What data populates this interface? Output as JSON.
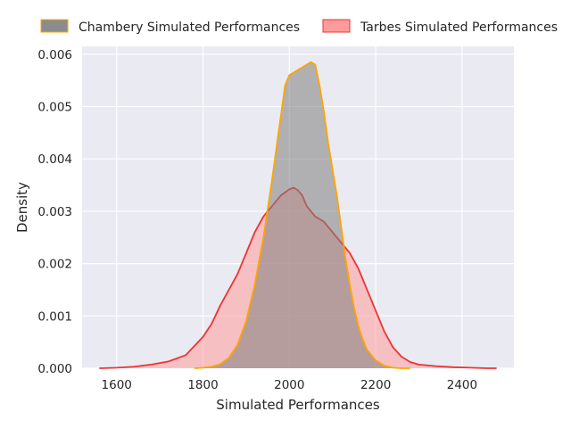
{
  "chart_data": {
    "type": "area",
    "title": "",
    "xlabel": "Simulated Performances",
    "ylabel": "Density",
    "xlim": [
      1520,
      2520
    ],
    "ylim": [
      0,
      0.00615
    ],
    "xticks": [
      1600,
      1800,
      2000,
      2200,
      2400
    ],
    "xtick_labels": [
      "1600",
      "1800",
      "2000",
      "2200",
      "2400"
    ],
    "yticks": [
      0,
      0.001,
      0.002,
      0.003,
      0.004,
      0.005,
      0.006
    ],
    "ytick_labels": [
      "0.000",
      "0.001",
      "0.002",
      "0.003",
      "0.004",
      "0.005",
      "0.006"
    ],
    "grid": true,
    "legend_position": "top",
    "series": [
      {
        "name": "Chambery Simulated Performances",
        "fill_color": "#7f7f7f",
        "line_color": "#ffa500",
        "x": [
          1780,
          1800,
          1820,
          1840,
          1860,
          1880,
          1900,
          1920,
          1940,
          1960,
          1970,
          1980,
          1990,
          2000,
          2010,
          2020,
          2030,
          2040,
          2050,
          2060,
          2070,
          2080,
          2090,
          2100,
          2110,
          2120,
          2130,
          2140,
          2150,
          2160,
          2170,
          2180,
          2200,
          2220,
          2240,
          2260,
          2280
        ],
        "y": [
          0.0,
          1e-05,
          3e-05,
          8e-05,
          0.0002,
          0.00045,
          0.0009,
          0.0016,
          0.0025,
          0.0036,
          0.0042,
          0.0048,
          0.0054,
          0.0056,
          0.00565,
          0.0057,
          0.00575,
          0.0058,
          0.00585,
          0.0058,
          0.0054,
          0.0049,
          0.0043,
          0.0038,
          0.0033,
          0.0027,
          0.0021,
          0.0016,
          0.00115,
          0.0008,
          0.00055,
          0.00035,
          0.00015,
          5e-05,
          1e-05,
          0.0,
          0.0
        ]
      },
      {
        "name": "Tarbes Simulated Performances",
        "fill_color": "#ff9b9b",
        "line_color": "#ee3333",
        "x": [
          1560,
          1600,
          1640,
          1680,
          1720,
          1760,
          1800,
          1820,
          1840,
          1860,
          1880,
          1900,
          1920,
          1940,
          1960,
          1980,
          2000,
          2010,
          2020,
          2030,
          2040,
          2060,
          2080,
          2100,
          2120,
          2140,
          2160,
          2180,
          2200,
          2220,
          2240,
          2260,
          2280,
          2300,
          2340,
          2380,
          2420,
          2460,
          2480
        ],
        "y": [
          0.0,
          1e-05,
          3e-05,
          7e-05,
          0.00013,
          0.00025,
          0.0006,
          0.00085,
          0.0012,
          0.0015,
          0.0018,
          0.0022,
          0.0026,
          0.0029,
          0.0031,
          0.0033,
          0.00342,
          0.00345,
          0.0034,
          0.0033,
          0.0031,
          0.0029,
          0.0028,
          0.0026,
          0.0024,
          0.0022,
          0.0019,
          0.0015,
          0.0011,
          0.0007,
          0.0004,
          0.00022,
          0.00012,
          7e-05,
          4e-05,
          2e-05,
          1e-05,
          0.0,
          0.0
        ]
      }
    ]
  }
}
